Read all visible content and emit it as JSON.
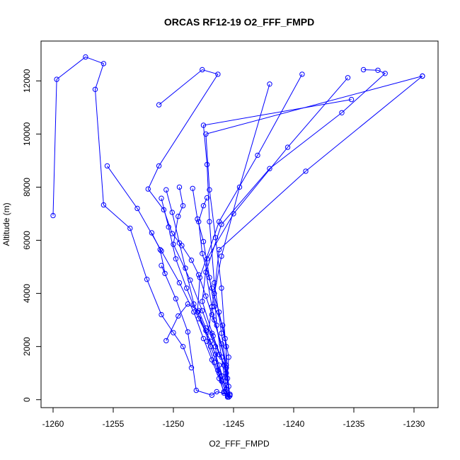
{
  "colors": {
    "series": "#0000ff",
    "axis": "#000000",
    "background": "#ffffff"
  },
  "chart_data": {
    "type": "line",
    "title": "ORCAS RF12-19 O2_FFF_FMPD",
    "xlabel": "O2_FFF_FMPD",
    "ylabel": "Altitude (m)",
    "xlim": [
      -1261,
      -1228
    ],
    "ylim": [
      -300,
      13500
    ],
    "xticks": [
      -1260,
      -1255,
      -1250,
      -1245,
      -1240,
      -1235,
      -1230
    ],
    "yticks": [
      0,
      2000,
      4000,
      6000,
      8000,
      10000,
      12000
    ],
    "markers": "open-circle",
    "grid": false,
    "legend": "none",
    "series": [
      {
        "x": [
          -1260.0,
          -1259.7,
          -1257.3,
          -1255.8,
          -1256.5,
          -1255.8,
          -1253.6,
          -1252.2,
          -1251.0,
          -1250.0,
          -1249.2,
          -1248.5
        ],
        "y": [
          6930,
          12060,
          12900,
          12650,
          11680,
          7330,
          6450,
          4530,
          3200,
          2520,
          2000,
          1200
        ]
      },
      {
        "x": [
          -1251.2,
          -1247.6,
          -1246.3,
          -1251.2,
          -1252.1,
          -1250.8,
          -1250.1,
          -1249.3,
          -1248.5,
          -1247.9,
          -1247.3,
          -1246.8,
          -1246.0,
          -1245.6,
          -1245.3
        ],
        "y": [
          11100,
          12420,
          12250,
          8800,
          7930,
          7150,
          6250,
          5800,
          5250,
          4700,
          3900,
          3200,
          2100,
          1000,
          200
        ]
      },
      {
        "x": [
          -1255.5,
          -1253.0,
          -1251.0,
          -1249.5,
          -1248.3,
          -1247.5,
          -1246.8,
          -1246.2,
          -1245.8,
          -1245.5
        ],
        "y": [
          8800,
          7200,
          5600,
          4400,
          3300,
          2300,
          1500,
          800,
          300,
          150
        ]
      },
      {
        "x": [
          -1242.0,
          -1244.5,
          -1246.0,
          -1246.8,
          -1247.2,
          -1246.6,
          -1246.0,
          -1245.5
        ],
        "y": [
          11880,
          8000,
          5400,
          3500,
          2200,
          1400,
          700,
          150
        ]
      },
      {
        "x": [
          -1239.3,
          -1243.0,
          -1246.2,
          -1247.8,
          -1248.0,
          -1246.9,
          -1246.0,
          -1245.4
        ],
        "y": [
          12250,
          9200,
          6700,
          4600,
          3300,
          2000,
          900,
          100
        ]
      },
      {
        "x": [
          -1235.5,
          -1240.5,
          -1245.0,
          -1247.2,
          -1247.6,
          -1246.7,
          -1245.8,
          -1245.3
        ],
        "y": [
          12120,
          9500,
          7000,
          5300,
          3700,
          2400,
          1300,
          200
        ]
      },
      {
        "x": [
          -1234.2,
          -1233.0,
          -1232.4,
          -1236.0,
          -1242.0,
          -1246.0,
          -1247.3,
          -1246.6,
          -1245.6
        ],
        "y": [
          12420,
          12400,
          12280,
          10800,
          8700,
          6600,
          4800,
          3000,
          1300
        ]
      },
      {
        "x": [
          -1235.2,
          -1247.5,
          -1247.2,
          -1247.0,
          -1246.6,
          -1246.0,
          -1245.5
        ],
        "y": [
          11300,
          10330,
          8850,
          6700,
          4400,
          2500,
          800
        ]
      },
      {
        "x": [
          -1229.3,
          -1247.3,
          -1247.0,
          -1246.5,
          -1246.0,
          -1245.7,
          -1245.4
        ],
        "y": [
          12180,
          10000,
          7900,
          6100,
          4200,
          2300,
          500
        ]
      },
      {
        "x": [
          -1229.3,
          -1239.0,
          -1246.2,
          -1246.6,
          -1246.4,
          -1246.0,
          -1245.6
        ],
        "y": [
          12180,
          8600,
          5650,
          4000,
          2800,
          1600,
          400
        ]
      },
      {
        "x": [
          -1249.5,
          -1249.2,
          -1249.6,
          -1250.0,
          -1248.6,
          -1247.6,
          -1246.5,
          -1246.3,
          -1245.8
        ],
        "y": [
          8000,
          7300,
          6900,
          5850,
          4500,
          3350,
          2000,
          1100,
          250
        ]
      },
      {
        "x": [
          -1248.4,
          -1248.0,
          -1247.5,
          -1247.0,
          -1246.6,
          -1245.9,
          -1245.4,
          -1245.6
        ],
        "y": [
          7950,
          6800,
          5950,
          4600,
          3500,
          2800,
          1600,
          300
        ]
      },
      {
        "x": [
          -1247.2,
          -1247.5,
          -1247.9,
          -1247.6,
          -1246.8,
          -1246.2,
          -1245.6,
          -1245.7
        ],
        "y": [
          7600,
          7300,
          6700,
          5500,
          4200,
          3300,
          2000,
          700
        ]
      },
      {
        "x": [
          -1250.6,
          -1250.1,
          -1249.5,
          -1249.0,
          -1248.3,
          -1247.3,
          -1246.5,
          -1246.2,
          -1245.5
        ],
        "y": [
          7900,
          7050,
          5900,
          4950,
          3600,
          2600,
          1700,
          1000,
          100
        ]
      },
      {
        "x": [
          -1251.0,
          -1250.4,
          -1249.8,
          -1248.9,
          -1247.9,
          -1246.9,
          -1246.2,
          -1245.5
        ],
        "y": [
          7580,
          6500,
          5300,
          4200,
          3050,
          2200,
          1300,
          200
        ]
      },
      {
        "x": [
          -1251.8,
          -1251.1,
          -1250.7,
          -1251.0,
          -1249.8,
          -1248.8,
          -1248.1,
          -1246.8,
          -1246.4,
          -1245.3
        ],
        "y": [
          6280,
          5650,
          4750,
          5050,
          3800,
          2550,
          350,
          170,
          300,
          200
        ]
      },
      {
        "x": [
          -1250.6,
          -1249.6,
          -1248.8,
          -1247.9,
          -1247.3,
          -1246.8,
          -1246.2,
          -1245.6,
          -1245.3
        ],
        "y": [
          2220,
          3150,
          3600,
          3350,
          2700,
          2500,
          1700,
          1200,
          150
        ]
      }
    ]
  }
}
